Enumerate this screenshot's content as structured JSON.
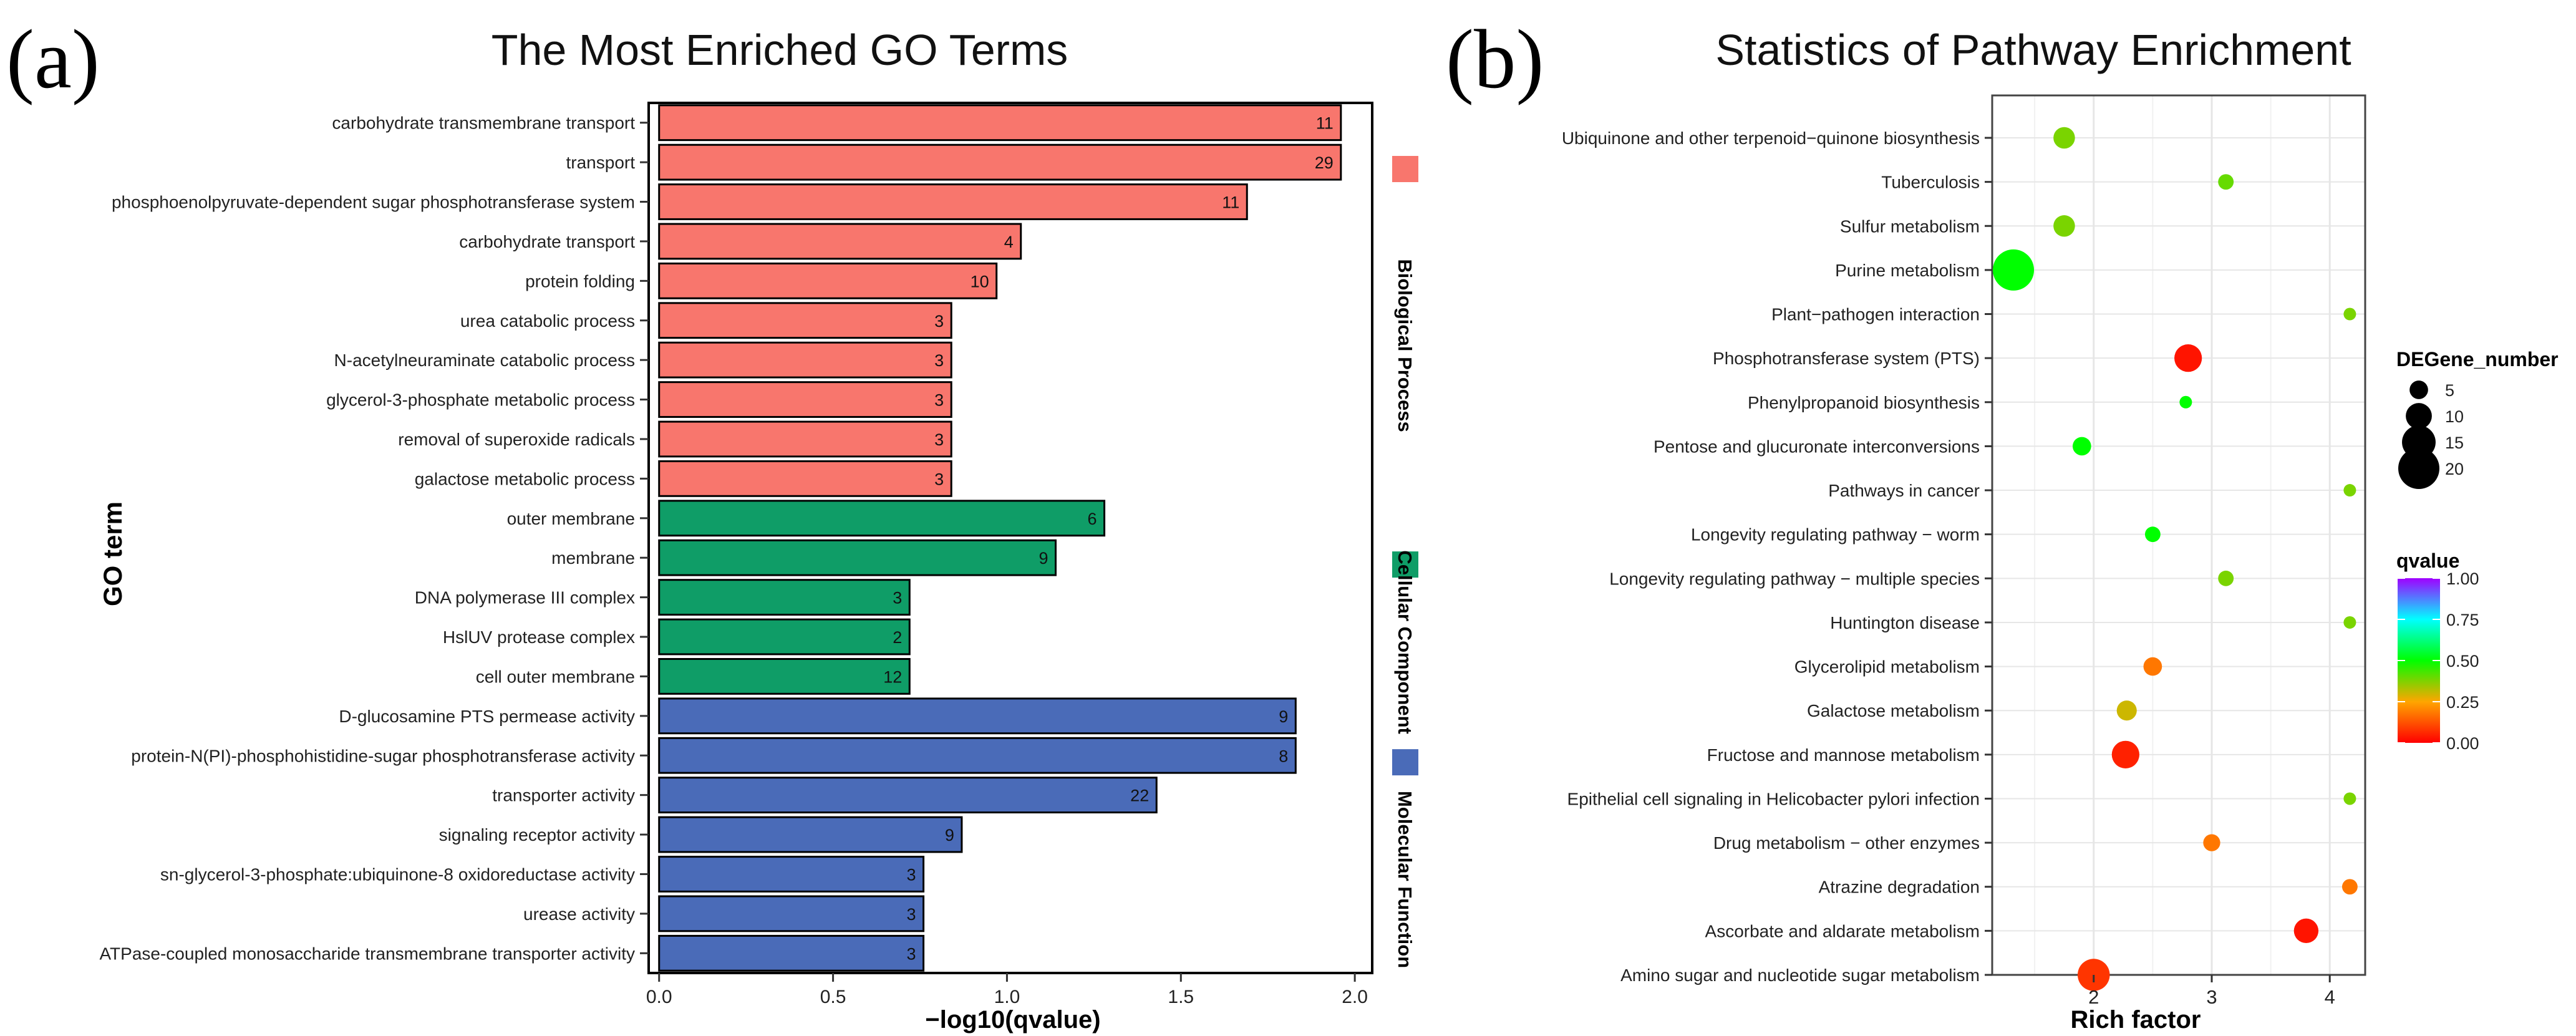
{
  "colors": {
    "biological_process": "#F8766D",
    "cellular_component": "#0F9D67",
    "molecular_function": "#4A6BB8",
    "grid": "#e6e6e6"
  },
  "chart_data": [
    {
      "panel_label": "(a)",
      "type": "bar",
      "orientation": "horizontal",
      "title": "The Most Enriched GO Terms",
      "xlabel": "−log10(qvalue)",
      "ylabel": "GO term",
      "xlim": [
        -0.03,
        2.05
      ],
      "xticks": [
        {
          "value": 0,
          "label": "0.0"
        },
        {
          "value": 0.5,
          "label": "0.5"
        },
        {
          "value": 1.0,
          "label": "1.0"
        },
        {
          "value": 1.5,
          "label": "1.5"
        },
        {
          "value": 2.0,
          "label": "2.0"
        }
      ],
      "categories": [
        {
          "key": "biological_process",
          "label": "Biological Process"
        },
        {
          "key": "cellular_component",
          "label": "Cellular Component"
        },
        {
          "key": "molecular_function",
          "label": "Molecular Function"
        }
      ],
      "bars": [
        {
          "term": "carbohydrate transmembrane transport",
          "value": 1.96,
          "count": "11",
          "category": "biological_process"
        },
        {
          "term": "transport",
          "value": 1.96,
          "count": "29",
          "category": "biological_process"
        },
        {
          "term": "phosphoenolpyruvate-dependent sugar phosphotransferase system",
          "value": 1.69,
          "count": "11",
          "category": "biological_process"
        },
        {
          "term": "carbohydrate transport",
          "value": 1.04,
          "count": "4",
          "category": "biological_process"
        },
        {
          "term": "protein folding",
          "value": 0.97,
          "count": "10",
          "category": "biological_process"
        },
        {
          "term": "urea catabolic process",
          "value": 0.84,
          "count": "3",
          "category": "biological_process"
        },
        {
          "term": "N-acetylneuraminate catabolic process",
          "value": 0.84,
          "count": "3",
          "category": "biological_process"
        },
        {
          "term": "glycerol-3-phosphate metabolic process",
          "value": 0.84,
          "count": "3",
          "category": "biological_process"
        },
        {
          "term": "removal of superoxide radicals",
          "value": 0.84,
          "count": "3",
          "category": "biological_process"
        },
        {
          "term": "galactose metabolic process",
          "value": 0.84,
          "count": "3",
          "category": "biological_process"
        },
        {
          "term": "outer membrane",
          "value": 1.28,
          "count": "6",
          "category": "cellular_component"
        },
        {
          "term": "membrane",
          "value": 1.14,
          "count": "9",
          "category": "cellular_component"
        },
        {
          "term": "DNA polymerase III complex",
          "value": 0.72,
          "count": "3",
          "category": "cellular_component"
        },
        {
          "term": "HslUV protease complex",
          "value": 0.72,
          "count": "2",
          "category": "cellular_component"
        },
        {
          "term": "cell outer membrane",
          "value": 0.72,
          "count": "12",
          "category": "cellular_component"
        },
        {
          "term": "D-glucosamine PTS permease activity",
          "value": 1.83,
          "count": "9",
          "category": "molecular_function"
        },
        {
          "term": "protein-N(PI)-phosphohistidine-sugar phosphotransferase activity",
          "value": 1.83,
          "count": "8",
          "category": "molecular_function"
        },
        {
          "term": "transporter activity",
          "value": 1.43,
          "count": "22",
          "category": "molecular_function"
        },
        {
          "term": "signaling receptor activity",
          "value": 0.87,
          "count": "9",
          "category": "molecular_function"
        },
        {
          "term": "sn-glycerol-3-phosphate:ubiquinone-8 oxidoreductase activity",
          "value": 0.76,
          "count": "3",
          "category": "molecular_function"
        },
        {
          "term": "urease activity",
          "value": 0.76,
          "count": "3",
          "category": "molecular_function"
        },
        {
          "term": "ATPase-coupled monosaccharide transmembrane transporter activity",
          "value": 0.76,
          "count": "3",
          "category": "molecular_function"
        }
      ]
    },
    {
      "panel_label": "(b)",
      "type": "scatter",
      "title": "Statistics of Pathway Enrichment",
      "xlabel": "Rich factor",
      "ylabel": "",
      "xlim": [
        1.14,
        4.3
      ],
      "grid": true,
      "xticks": [
        {
          "value": 2,
          "label": "2"
        },
        {
          "value": 3,
          "label": "3"
        },
        {
          "value": 4,
          "label": "4"
        }
      ],
      "points": [
        {
          "pathway": "Ubiquinone and other terpenoid−quinone biosynthesis",
          "rich_factor": 1.75,
          "qvalue": 0.38,
          "genes": 7
        },
        {
          "pathway": "Tuberculosis",
          "rich_factor": 3.12,
          "qvalue": 0.4,
          "genes": 3
        },
        {
          "pathway": "Sulfur metabolism",
          "rich_factor": 1.75,
          "qvalue": 0.38,
          "genes": 7
        },
        {
          "pathway": "Purine metabolism",
          "rich_factor": 1.32,
          "qvalue": 0.5,
          "genes": 20
        },
        {
          "pathway": "Plant−pathogen interaction",
          "rich_factor": 4.17,
          "qvalue": 0.38,
          "genes": 1
        },
        {
          "pathway": "Phosphotransferase system (PTS)",
          "rich_factor": 2.8,
          "qvalue": 0.03,
          "genes": 11
        },
        {
          "pathway": "Phenylpropanoid biosynthesis",
          "rich_factor": 2.78,
          "qvalue": 0.5,
          "genes": 1
        },
        {
          "pathway": "Pentose and glucuronate interconversions",
          "rich_factor": 1.9,
          "qvalue": 0.5,
          "genes": 5
        },
        {
          "pathway": "Pathways in cancer",
          "rich_factor": 4.17,
          "qvalue": 0.38,
          "genes": 1
        },
        {
          "pathway": "Longevity regulating pathway − worm",
          "rich_factor": 2.5,
          "qvalue": 0.5,
          "genes": 3
        },
        {
          "pathway": "Longevity regulating pathway − multiple species",
          "rich_factor": 3.12,
          "qvalue": 0.38,
          "genes": 3
        },
        {
          "pathway": "Huntington disease",
          "rich_factor": 4.17,
          "qvalue": 0.38,
          "genes": 1
        },
        {
          "pathway": "Glycerolipid metabolism",
          "rich_factor": 2.5,
          "qvalue": 0.18,
          "genes": 5
        },
        {
          "pathway": "Galactose metabolism",
          "rich_factor": 2.28,
          "qvalue": 0.3,
          "genes": 6
        },
        {
          "pathway": "Fructose and mannose metabolism",
          "rich_factor": 2.27,
          "qvalue": 0.05,
          "genes": 11
        },
        {
          "pathway": "Epithelial cell signaling in Helicobacter pylori infection",
          "rich_factor": 4.17,
          "qvalue": 0.38,
          "genes": 1
        },
        {
          "pathway": "Drug metabolism − other enzymes",
          "rich_factor": 3.0,
          "qvalue": 0.18,
          "genes": 4
        },
        {
          "pathway": "Atrazine degradation",
          "rich_factor": 4.17,
          "qvalue": 0.18,
          "genes": 3
        },
        {
          "pathway": "Ascorbate and aldarate metabolism",
          "rich_factor": 3.8,
          "qvalue": 0.03,
          "genes": 9
        },
        {
          "pathway": "Amino sugar and nucleotide sugar metabolism",
          "rich_factor": 2.0,
          "qvalue": 0.08,
          "genes": 14
        }
      ],
      "size_legend": {
        "title": "DEGene_number",
        "values": [
          5,
          10,
          15,
          20
        ],
        "labels": [
          "5",
          "10",
          "15",
          "20"
        ]
      },
      "color_legend": {
        "title": "qvalue",
        "range": [
          0,
          1
        ],
        "ticks": [
          {
            "value": 1.0,
            "label": "1.00"
          },
          {
            "value": 0.75,
            "label": "0.75"
          },
          {
            "value": 0.5,
            "label": "0.50"
          },
          {
            "value": 0.25,
            "label": "0.25"
          },
          {
            "value": 0.0,
            "label": "0.00"
          }
        ]
      }
    }
  ]
}
